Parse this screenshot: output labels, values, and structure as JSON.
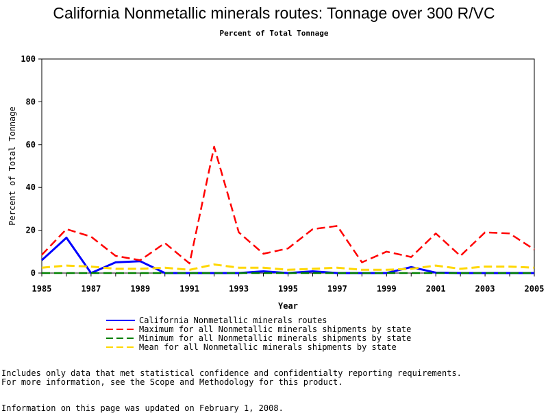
{
  "page": {
    "title": "California Nonmetallic minerals routes: Tonnage over 300 R/VC",
    "subtitle": "Percent of Total Tonnage",
    "footnote_1": "Includes only data that met statistical confidence and confidentialty reporting requirements.",
    "footnote_2": "For more information, see the Scope and Methodology for this product.",
    "footnote_3": "Information on this page was updated on February 1, 2008."
  },
  "chart_data": {
    "type": "line",
    "title": "California Nonmetallic minerals routes: Tonnage over 300 R/VC",
    "subtitle": "Percent of Total Tonnage",
    "xlabel": "Year",
    "ylabel": "Percent of Total Tonnage",
    "xlim": [
      1985,
      2005
    ],
    "ylim": [
      0,
      100
    ],
    "x_ticks": [
      "1985",
      "1987",
      "1989",
      "1991",
      "1993",
      "1995",
      "1997",
      "1999",
      "2001",
      "2003",
      "2005"
    ],
    "y_ticks": [
      "0",
      "20",
      "40",
      "60",
      "80",
      "100"
    ],
    "grid": false,
    "legend_position": "bottom",
    "x": [
      1985,
      1986,
      1987,
      1988,
      1989,
      1990,
      1991,
      1992,
      1993,
      1994,
      1995,
      1996,
      1997,
      1998,
      1999,
      2000,
      2001,
      2002,
      2003,
      2004,
      2005
    ],
    "series": [
      {
        "name": "California Nonmetallic minerals routes",
        "color": "#0000ff",
        "dash": "solid",
        "values": [
          6,
          16.5,
          0,
          5,
          5.5,
          0,
          0,
          0,
          0,
          0.8,
          0,
          0.8,
          0,
          0,
          0,
          2.8,
          0.2,
          0,
          0,
          0,
          0
        ]
      },
      {
        "name": "Maximum for all Nonmetallic minerals shipments by state",
        "color": "#ff0000",
        "dash": "dashed",
        "values": [
          8.5,
          20.5,
          17,
          8,
          6,
          14,
          4.5,
          59,
          19,
          9,
          11.5,
          20.5,
          22,
          5,
          10,
          7.5,
          18.5,
          8,
          19,
          18.5,
          11
        ]
      },
      {
        "name": "Minimum for all Nonmetallic minerals shipments by state",
        "color": "#008000",
        "dash": "dashed",
        "values": [
          0,
          0,
          0,
          0,
          0,
          0,
          0,
          0,
          0,
          0,
          0,
          0,
          0,
          0,
          0,
          0,
          0,
          0,
          0,
          0,
          0
        ]
      },
      {
        "name": "Mean for all Nonmetallic minerals shipments by state",
        "color": "#ffd700",
        "dash": "dashed",
        "values": [
          2.5,
          3.5,
          3,
          2,
          2,
          2.5,
          1.5,
          4,
          2.5,
          2.5,
          1.5,
          2,
          2.5,
          1.5,
          1.5,
          2,
          3.5,
          2,
          3,
          3,
          2.5
        ]
      }
    ]
  }
}
